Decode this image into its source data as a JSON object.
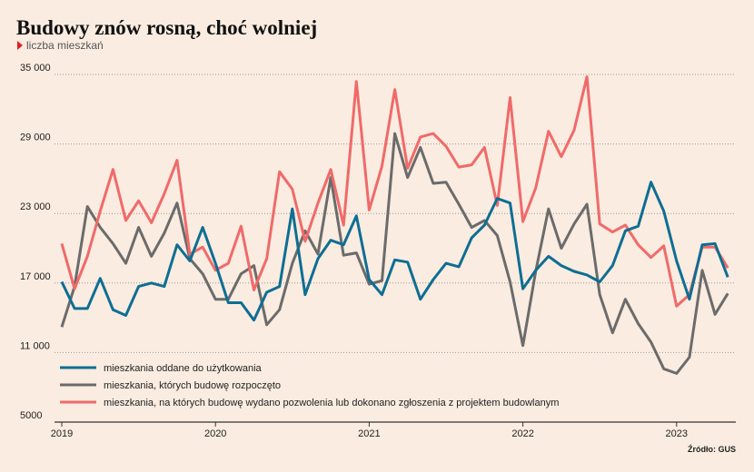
{
  "chart_data": {
    "type": "line",
    "title": "Budowy znów rosną, choć wolniej",
    "subtitle": "liczba mieszkań",
    "source": "Źródło: GUS",
    "categories": [
      "2019",
      null,
      null,
      null,
      null,
      null,
      null,
      null,
      null,
      null,
      null,
      null,
      "2020",
      null,
      null,
      null,
      null,
      null,
      null,
      null,
      null,
      null,
      null,
      null,
      "2021",
      null,
      null,
      null,
      null,
      null,
      null,
      null,
      null,
      null,
      null,
      null,
      "2022",
      null,
      null,
      null,
      null,
      null,
      null,
      null,
      null,
      null,
      null,
      null,
      "2023",
      null,
      null,
      null,
      null
    ],
    "ylim": [
      5000,
      35000
    ],
    "yticks": [
      {
        "value": 5000,
        "label": "5000"
      },
      {
        "value": 11000,
        "label": "11 000"
      },
      {
        "value": 17000,
        "label": "17 000"
      },
      {
        "value": 23000,
        "label": "23 000"
      },
      {
        "value": 29000,
        "label": "29 000"
      },
      {
        "value": 35000,
        "label": "35 000"
      }
    ],
    "grid": true,
    "legend": "bottom-left",
    "series": [
      {
        "name": "mieszkania oddane do użytkowania",
        "color": "#0e6e93",
        "values": [
          17100,
          14800,
          14800,
          17400,
          14700,
          14200,
          16700,
          17000,
          16700,
          20300,
          18900,
          21800,
          18700,
          15300,
          15300,
          13800,
          16200,
          16700,
          23400,
          16000,
          19100,
          20700,
          20300,
          22800,
          17300,
          16000,
          19000,
          18800,
          15600,
          17300,
          18700,
          18400,
          20900,
          22000,
          24300,
          23900,
          16500,
          18100,
          19300,
          18500,
          18000,
          17700,
          17100,
          18500,
          21500,
          21900,
          25700,
          23200,
          18900,
          15600,
          20300,
          20400,
          17500
        ]
      },
      {
        "name": "mieszkania, których budowę rozpoczęto",
        "color": "#6b6b6b",
        "values": [
          13200,
          16700,
          23600,
          21800,
          20400,
          18700,
          21800,
          19300,
          21300,
          23900,
          19100,
          17800,
          15600,
          15600,
          17800,
          18500,
          13400,
          14700,
          18700,
          21500,
          19500,
          26100,
          19400,
          19600,
          16900,
          17200,
          29900,
          26100,
          28700,
          25600,
          25700,
          23800,
          21800,
          22400,
          21100,
          17100,
          11600,
          18000,
          23400,
          20000,
          22100,
          23800,
          16000,
          12700,
          15600,
          13500,
          11900,
          9600,
          9200,
          10600,
          18100,
          14300,
          16100
        ]
      },
      {
        "name": "mieszkania, na których budowę wydano pozwolenia lub dokonano zgłoszenia z projektem budowlanym",
        "color": "#f06a6a",
        "values": [
          20400,
          16500,
          19300,
          23200,
          26800,
          22400,
          24100,
          22200,
          24700,
          27600,
          19500,
          20100,
          18100,
          18700,
          21900,
          16400,
          19100,
          26600,
          25100,
          20600,
          23900,
          26800,
          22000,
          34400,
          23300,
          27100,
          33700,
          26900,
          29600,
          29900,
          28800,
          27000,
          27200,
          28700,
          23700,
          33000,
          22300,
          25200,
          30100,
          27900,
          30200,
          34800,
          22100,
          21400,
          22000,
          20300,
          19200,
          20200,
          15000,
          16000,
          20100,
          20100,
          18300
        ]
      }
    ]
  }
}
